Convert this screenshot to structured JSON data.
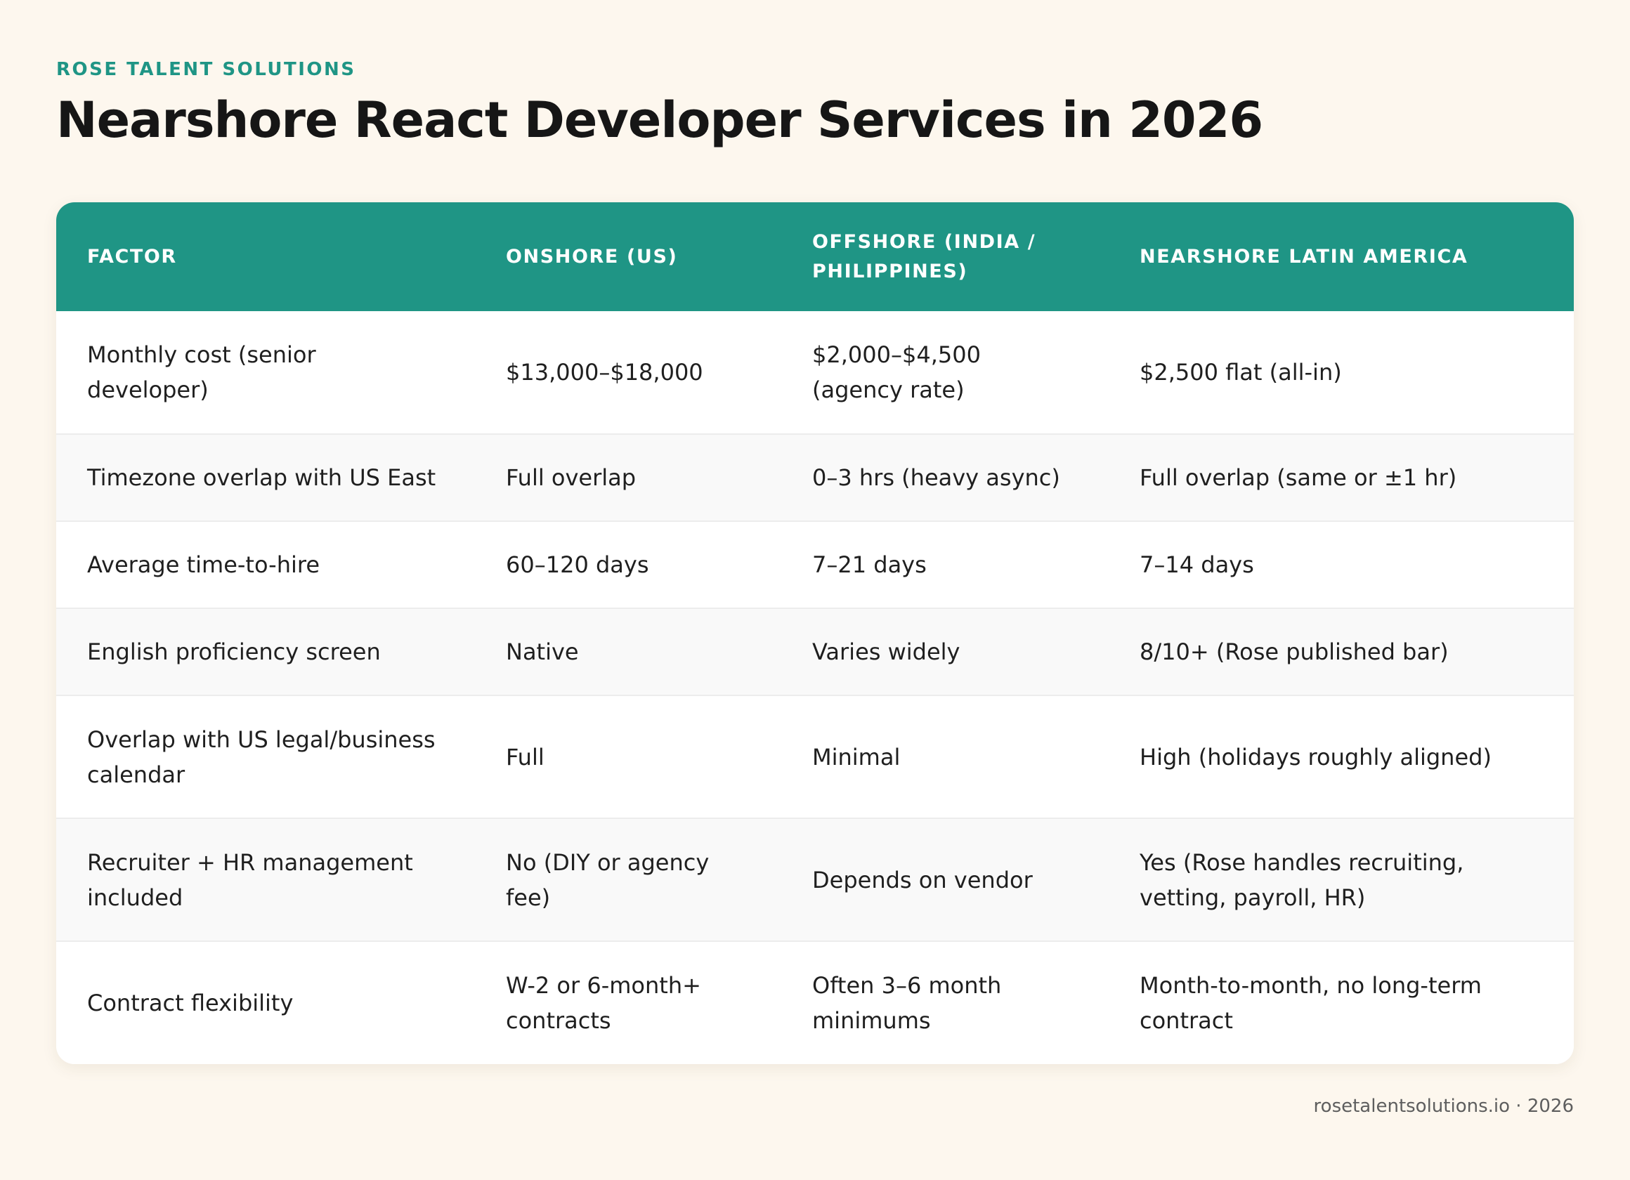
{
  "header": {
    "brand": "ROSE TALENT SOLUTIONS",
    "title": "Nearshore React Developer Services in 2026"
  },
  "table": {
    "columns": [
      "FACTOR",
      "ONSHORE (US)",
      "OFFSHORE (INDIA / PHILIPPINES)",
      "NEARSHORE LATIN AMERICA"
    ],
    "rows": [
      [
        "Monthly cost (senior developer)",
        "$13,000–$18,000",
        "$2,000–$4,500 (agency rate)",
        "$2,500 flat (all-in)"
      ],
      [
        "Timezone overlap with US East",
        "Full overlap",
        "0–3 hrs (heavy async)",
        "Full overlap (same or ±1 hr)"
      ],
      [
        "Average time-to-hire",
        "60–120 days",
        "7–21 days",
        "7–14 days"
      ],
      [
        "English proficiency screen",
        "Native",
        "Varies widely",
        "8/10+ (Rose published bar)"
      ],
      [
        "Overlap with US legal/business calendar",
        "Full",
        "Minimal",
        "High (holidays roughly aligned)"
      ],
      [
        "Recruiter + HR management included",
        "No (DIY or agency fee)",
        "Depends on vendor",
        "Yes (Rose handles recruiting, vetting, payroll, HR)"
      ],
      [
        "Contract flexibility",
        "W-2 or 6-month+ contracts",
        "Often 3–6 month minimums",
        "Month-to-month, no long-term contract"
      ]
    ]
  },
  "footer": {
    "text": "rosetalentsolutions.io · 2026"
  },
  "colors": {
    "accent": "#1f9585",
    "background": "#fdf7ee",
    "text": "#1f1f1f"
  }
}
